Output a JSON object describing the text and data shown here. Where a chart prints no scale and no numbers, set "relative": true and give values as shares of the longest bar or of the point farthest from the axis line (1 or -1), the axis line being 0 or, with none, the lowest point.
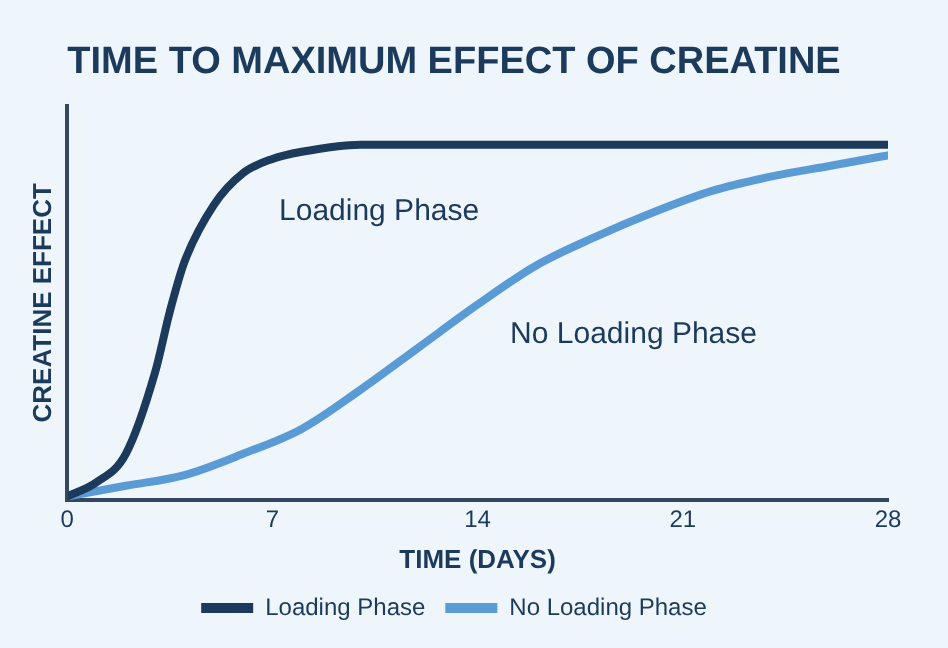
{
  "chart_data": {
    "type": "line",
    "title": "TIME TO MAXIMUM EFFECT OF CREATINE",
    "xlabel": "TIME (DAYS)",
    "ylabel": "CREATINE EFFECT",
    "relative": true,
    "xlim": [
      0,
      28
    ],
    "xticks": [
      0,
      7,
      14,
      21,
      28
    ],
    "grid": false,
    "legend": "bottom",
    "marker": "none",
    "line_style": "solid",
    "series": [
      {
        "name": "Loading Phase",
        "color": "#1b3a5c",
        "x": [
          0,
          1,
          2,
          3,
          3.5,
          4,
          5,
          6,
          7,
          8,
          10,
          14,
          21,
          28
        ],
        "values": [
          0.01,
          0.05,
          0.13,
          0.36,
          0.53,
          0.67,
          0.83,
          0.92,
          0.96,
          0.98,
          1,
          1,
          1,
          1
        ]
      },
      {
        "name": "No Loading Phase",
        "color": "#5b9bd5",
        "x": [
          0,
          2,
          4,
          6,
          8,
          10,
          12,
          14,
          16,
          18,
          20,
          22,
          24,
          26,
          28
        ],
        "values": [
          0.01,
          0.04,
          0.07,
          0.13,
          0.2,
          0.31,
          0.43,
          0.55,
          0.66,
          0.74,
          0.81,
          0.87,
          0.91,
          0.94,
          0.97
        ]
      }
    ],
    "annotations": [
      "Loading Phase",
      "No Loading Phase"
    ]
  }
}
